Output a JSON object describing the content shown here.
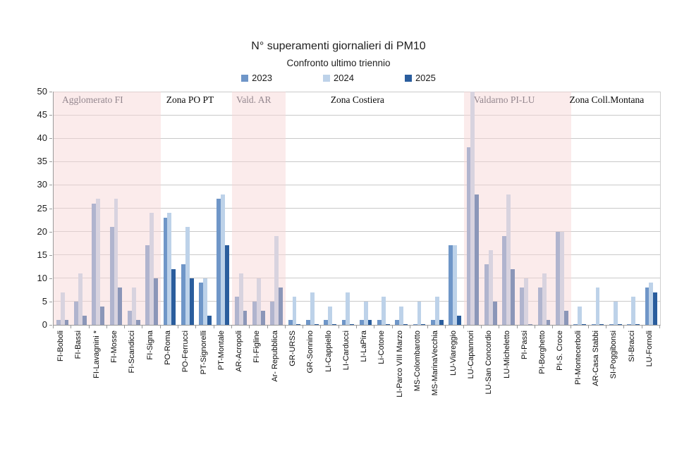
{
  "header": {
    "title": "N° superamenti giornalieri di PM10",
    "subtitle": "Confronto ultimo triennio"
  },
  "colors": {
    "series_2023": "#6f96c8",
    "series_2024": "#bdd2e9",
    "series_2025": "#2a5d9d",
    "zone_highlight_pink": "#f7d6d6",
    "gridline": "#c9c9c9",
    "axis": "#9a9a9a"
  },
  "chart_data": {
    "type": "bar",
    "title": "N° superamenti giornalieri di PM10",
    "subtitle": "Confronto ultimo triennio",
    "xlabel": "",
    "ylabel": "",
    "ylim": [
      0,
      50
    ],
    "ytick_step": 5,
    "grid": true,
    "legend_position": "top",
    "zones": [
      {
        "label": "Agglomerato FI",
        "highlight": true,
        "stations": 6
      },
      {
        "label": "Zona PO PT",
        "highlight": false,
        "stations": 4
      },
      {
        "label": "Vald. AR",
        "highlight": true,
        "stations": 3
      },
      {
        "label": "Zona Costiera",
        "highlight": false,
        "stations": 10
      },
      {
        "label": "Valdarno PI-LU",
        "highlight": true,
        "stations": 6
      },
      {
        "label": "Zona Coll.Montana",
        "highlight": false,
        "stations": 5
      }
    ],
    "categories": [
      "FI-Boboli",
      "FI-Bassi",
      "FI-Lavagnini *",
      "FI-Mosse",
      "FI-Scandicci",
      "FI-Signa",
      "PO-Roma",
      "PO-Ferrucci",
      "PT-Signorelli",
      "PT-Montale",
      "AR-Acropoli",
      "FI-Figline",
      "Ar- Repubblica",
      "GR-URSS",
      "GR-Sonnino",
      "LI-Cappiello",
      "LI-Carducci",
      "LI-LaPira",
      "Li-Cotone",
      "LI-Parco VIII Marzo",
      "MS-Colombarotto",
      "MS-MarinaVecchia",
      "LU-Viareggio",
      "LU-Capannori",
      "LU-San Concordio",
      "LU-Micheletto",
      "PI-Passi",
      "PI-Borghetto",
      "PI-S. Croce",
      "PI-Montecerboli",
      "AR-Casa Stabbi",
      "SI-Poggibonsi",
      "SI-Bracci",
      "LU-Fornoli"
    ],
    "series": [
      {
        "name": "2023",
        "color": "#6f96c8",
        "values": [
          1,
          5,
          26,
          21,
          3,
          17,
          23,
          13,
          9,
          27,
          6,
          5,
          5,
          1,
          1,
          1,
          1,
          1,
          1,
          1,
          0,
          1,
          17,
          38,
          13,
          19,
          8,
          8,
          20,
          0,
          0,
          0,
          0,
          8
        ]
      },
      {
        "name": "2024",
        "color": "#bdd2e9",
        "values": [
          7,
          11,
          27,
          27,
          8,
          24,
          24,
          21,
          10,
          28,
          11,
          10,
          19,
          6,
          7,
          4,
          7,
          5,
          6,
          4,
          5,
          6,
          17,
          50,
          16,
          28,
          10,
          11,
          20,
          4,
          8,
          5,
          6,
          9
        ]
      },
      {
        "name": "2025",
        "color": "#2a5d9d",
        "values": [
          1,
          2,
          4,
          8,
          1,
          10,
          12,
          10,
          2,
          17,
          3,
          3,
          8,
          0,
          0,
          0,
          0,
          1,
          0,
          0,
          0,
          1,
          2,
          28,
          5,
          12,
          0,
          1,
          3,
          0,
          0,
          0,
          0,
          7
        ]
      }
    ]
  }
}
